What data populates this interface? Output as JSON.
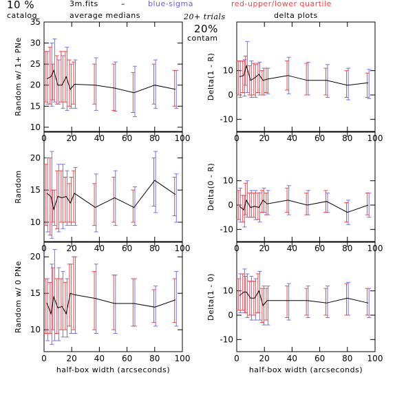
{
  "header": {
    "percent": "10 %",
    "catalog": "catalog",
    "filename": "3m.fits",
    "dash": "–",
    "medians": "average medians",
    "blue_label": "blue-sigma",
    "red_label": "red-upper/lower quartile",
    "trials": "20+ trials",
    "contam_pct": "20%",
    "contam": "contam",
    "delta_title": "delta plots",
    "colors": {
      "blue": "#7070ff",
      "red": "#ff4040"
    }
  },
  "chart_data": [
    {
      "type": "line",
      "panel": "left-top",
      "ylabel": "Random w/ 1+ PNe",
      "xlabel": "",
      "xlim": [
        0,
        100
      ],
      "ylim": [
        9,
        35
      ],
      "xticks": [
        0,
        20,
        40,
        60,
        80,
        100
      ],
      "yticks": [
        10,
        15,
        20,
        25,
        30,
        35
      ],
      "x": [
        2,
        5,
        7,
        10,
        13,
        16,
        19,
        22,
        37,
        51,
        65,
        80,
        95
      ],
      "y": [
        21.5,
        22,
        23.5,
        20,
        20,
        22,
        19,
        20.2,
        20,
        19.3,
        18.2,
        20,
        19
      ],
      "blue": [
        [
          15.5,
          28
        ],
        [
          15,
          30
        ],
        [
          16,
          31
        ],
        [
          15.5,
          26
        ],
        [
          14.5,
          27
        ],
        [
          14,
          29
        ],
        [
          14.5,
          25
        ],
        [
          14.5,
          26
        ],
        [
          14,
          26.5
        ],
        [
          13.8,
          25.5
        ],
        [
          12.5,
          24.5
        ],
        [
          14.5,
          26
        ],
        [
          14.5,
          23.5
        ]
      ],
      "red": [
        [
          16,
          28
        ],
        [
          15.5,
          29
        ],
        [
          16.5,
          25
        ],
        [
          15.5,
          27
        ],
        [
          16,
          28
        ],
        [
          16,
          28
        ],
        [
          15,
          26
        ],
        [
          15.5,
          25.5
        ],
        [
          15.5,
          25
        ],
        [
          14,
          25
        ],
        [
          13.5,
          23
        ],
        [
          15.5,
          25
        ],
        [
          15,
          23.5
        ]
      ]
    },
    {
      "type": "line",
      "panel": "left-middle",
      "ylabel": "Random",
      "xlabel": "",
      "xlim": [
        0,
        100
      ],
      "ylim": [
        7,
        24
      ],
      "xticks": [
        0,
        20,
        40,
        60,
        80,
        100
      ],
      "yticks": [
        10,
        15,
        20
      ],
      "x": [
        2,
        5,
        7,
        10,
        13,
        16,
        19,
        22,
        37,
        51,
        65,
        80,
        95
      ],
      "y": [
        14.5,
        14,
        12,
        14,
        13.8,
        14,
        13,
        14.5,
        12.3,
        13.8,
        12.3,
        16.5,
        14.3
      ],
      "blue": [
        [
          8.5,
          20
        ],
        [
          7.5,
          21
        ],
        [
          9.5,
          15
        ],
        [
          8.5,
          19
        ],
        [
          9,
          19
        ],
        [
          9.5,
          18
        ],
        [
          9.5,
          17
        ],
        [
          9.5,
          18.5
        ],
        [
          8.5,
          17.5
        ],
        [
          9.5,
          18
        ],
        [
          9.5,
          15.5
        ],
        [
          11.5,
          21
        ],
        [
          10,
          17.5
        ]
      ],
      "red": [
        [
          9.5,
          19
        ],
        [
          8,
          20
        ],
        [
          10,
          15
        ],
        [
          9,
          18
        ],
        [
          10,
          18
        ],
        [
          10,
          17
        ],
        [
          10,
          16
        ],
        [
          10,
          18
        ],
        [
          9.5,
          16
        ],
        [
          10,
          17
        ],
        [
          10,
          15
        ],
        [
          12.5,
          20
        ],
        [
          11,
          17
        ]
      ]
    },
    {
      "type": "line",
      "panel": "left-bottom",
      "ylabel": "Random w/ 0 PNe",
      "xlabel": "half-box width (arcseconds)",
      "xlim": [
        0,
        100
      ],
      "ylim": [
        7,
        22
      ],
      "xticks": [
        0,
        20,
        40,
        60,
        80,
        100
      ],
      "yticks": [
        10,
        15,
        20
      ],
      "x": [
        2,
        5,
        7,
        10,
        13,
        16,
        19,
        22,
        37,
        51,
        65,
        80,
        95
      ],
      "y": [
        13.7,
        12.2,
        14.5,
        13,
        13.2,
        12.2,
        15,
        14.8,
        14.3,
        13.6,
        13.6,
        13.1,
        14.1
      ],
      "blue": [
        [
          8.5,
          17
        ],
        [
          8,
          19
        ],
        [
          8.5,
          21
        ],
        [
          8.5,
          18.5
        ],
        [
          9,
          18
        ],
        [
          9,
          17
        ],
        [
          9.5,
          19
        ],
        [
          9.5,
          20
        ],
        [
          9.5,
          19
        ],
        [
          9.5,
          17.5
        ],
        [
          10.5,
          17
        ],
        [
          10.5,
          16
        ],
        [
          10.5,
          18
        ]
      ],
      "red": [
        [
          9.5,
          17
        ],
        [
          9.5,
          16.5
        ],
        [
          10,
          18.5
        ],
        [
          9.5,
          17
        ],
        [
          10,
          17
        ],
        [
          10,
          16.5
        ],
        [
          10.5,
          19
        ],
        [
          10,
          20
        ],
        [
          10,
          18
        ],
        [
          10,
          17.5
        ],
        [
          10.5,
          17
        ],
        [
          11,
          15.5
        ],
        [
          11,
          17
        ]
      ]
    },
    {
      "type": "line",
      "panel": "right-top",
      "ylabel": "Delta(1 - R)",
      "xlabel": "",
      "xlim": [
        0,
        100
      ],
      "ylim": [
        -15,
        30
      ],
      "xticks": [
        0,
        20,
        40,
        60,
        80,
        100
      ],
      "yticks": [
        -10,
        0,
        10
      ],
      "x": [
        2,
        5,
        7,
        10,
        13,
        16,
        19,
        22,
        37,
        51,
        65,
        80,
        95
      ],
      "y": [
        7.5,
        8,
        12,
        6,
        7,
        8.5,
        6,
        6.5,
        8,
        6,
        6,
        4,
        5
      ],
      "blue": [
        [
          -1,
          14
        ],
        [
          -0.5,
          14.5
        ],
        [
          1,
          22
        ],
        [
          -1,
          14
        ],
        [
          -1,
          12.5
        ],
        [
          0,
          13.5
        ],
        [
          0,
          11
        ],
        [
          0.5,
          11
        ],
        [
          0.5,
          15.5
        ],
        [
          0,
          13.5
        ],
        [
          -1,
          12.5
        ],
        [
          -2,
          11
        ],
        [
          -1.5,
          10.5
        ]
      ],
      "red": [
        [
          0,
          14
        ],
        [
          1,
          14
        ],
        [
          4,
          16
        ],
        [
          0,
          12
        ],
        [
          0,
          13
        ],
        [
          1,
          13
        ],
        [
          0,
          10
        ],
        [
          1,
          11
        ],
        [
          2,
          14
        ],
        [
          0,
          13
        ],
        [
          0,
          11
        ],
        [
          -1,
          10
        ],
        [
          -1,
          9
        ]
      ]
    },
    {
      "type": "line",
      "panel": "right-middle",
      "ylabel": "Delta(0 - R)",
      "xlabel": "",
      "xlim": [
        0,
        100
      ],
      "ylim": [
        -15,
        30
      ],
      "xticks": [
        0,
        20,
        40,
        60,
        80,
        100
      ],
      "yticks": [
        -10,
        0,
        10
      ],
      "x": [
        2,
        5,
        7,
        10,
        13,
        16,
        19,
        22,
        37,
        51,
        65,
        80,
        95
      ],
      "y": [
        -0.5,
        -2,
        2,
        -1,
        -0.5,
        -1,
        2,
        0.5,
        2,
        0,
        1.5,
        -3,
        0
      ],
      "blue": [
        [
          -7,
          7
        ],
        [
          -9,
          4
        ],
        [
          -5,
          10
        ],
        [
          -5,
          6
        ],
        [
          -6,
          6
        ],
        [
          -7,
          5
        ],
        [
          -3,
          7
        ],
        [
          -4,
          6
        ],
        [
          -4,
          8
        ],
        [
          -4,
          6
        ],
        [
          -3,
          5
        ],
        [
          -8,
          2
        ],
        [
          -5,
          5
        ]
      ],
      "red": [
        [
          -6,
          6
        ],
        [
          -7,
          4
        ],
        [
          -4,
          9
        ],
        [
          -5,
          5
        ],
        [
          -5,
          5
        ],
        [
          -6,
          5
        ],
        [
          -3,
          6
        ],
        [
          -4,
          5
        ],
        [
          -3,
          7
        ],
        [
          -4,
          5
        ],
        [
          -3,
          6
        ],
        [
          -7,
          1
        ],
        [
          -4,
          5
        ]
      ]
    },
    {
      "type": "line",
      "panel": "right-bottom",
      "ylabel": "Delta(1 - 0)",
      "xlabel": "half-box width (arcseconds)",
      "xlim": [
        0,
        100
      ],
      "ylim": [
        -15,
        30
      ],
      "xticks": [
        0,
        20,
        40,
        60,
        80,
        100
      ],
      "yticks": [
        -10,
        0,
        10
      ],
      "x": [
        2,
        5,
        7,
        10,
        13,
        16,
        19,
        22,
        37,
        51,
        65,
        80,
        95
      ],
      "y": [
        8,
        9.5,
        9.5,
        7,
        7,
        10,
        4,
        6,
        6,
        6,
        5,
        7,
        5
      ],
      "blue": [
        [
          1,
          17
        ],
        [
          1,
          19
        ],
        [
          -1,
          17
        ],
        [
          -2,
          16
        ],
        [
          -2,
          15
        ],
        [
          -2,
          18
        ],
        [
          -4,
          12
        ],
        [
          -4,
          12
        ],
        [
          -2,
          13
        ],
        [
          -1,
          12
        ],
        [
          -1,
          12
        ],
        [
          0,
          13.5
        ],
        [
          -1,
          11
        ]
      ],
      "red": [
        [
          2,
          15
        ],
        [
          2,
          17
        ],
        [
          1,
          16
        ],
        [
          0,
          14
        ],
        [
          0,
          14
        ],
        [
          1,
          17
        ],
        [
          -3,
          11
        ],
        [
          -2,
          11
        ],
        [
          -1,
          12
        ],
        [
          0,
          11
        ],
        [
          0,
          11
        ],
        [
          0,
          13
        ],
        [
          0,
          11
        ]
      ]
    }
  ]
}
